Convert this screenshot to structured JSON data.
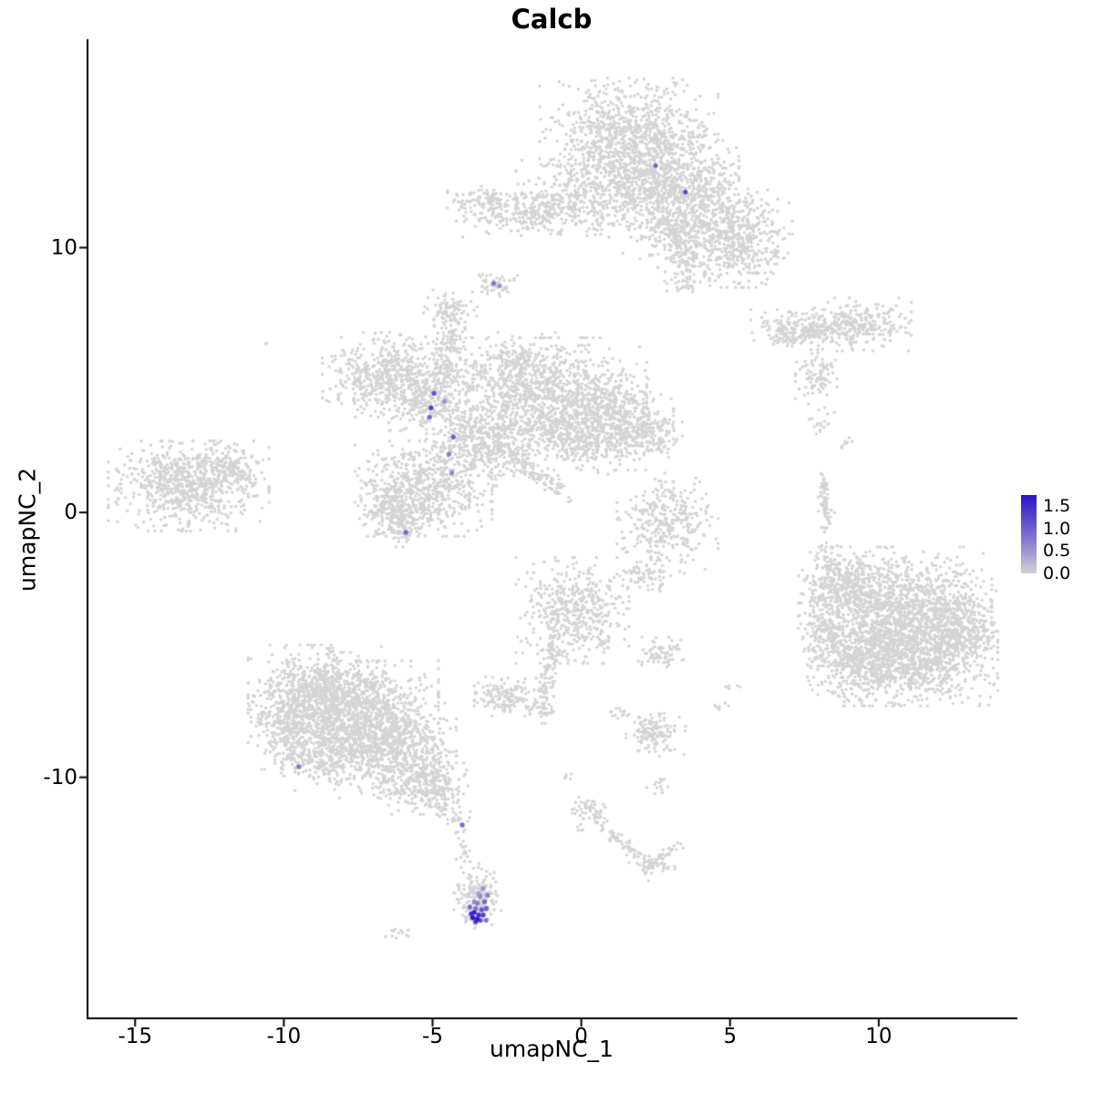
{
  "chart_data": {
    "type": "scatter",
    "title": "Calcb",
    "xlabel": "umapNC_1",
    "ylabel": "umapNC_2",
    "xlim": [
      -16.6,
      14.6
    ],
    "ylim": [
      -19.1,
      17.8
    ],
    "x_ticks": [
      -15,
      -10,
      -5,
      0,
      5,
      10
    ],
    "x_tick_labels": [
      "-15",
      "-10",
      "-5",
      "0",
      "5",
      "10"
    ],
    "y_ticks": [
      10,
      0,
      -10
    ],
    "y_tick_labels": [
      "10",
      "0",
      "-10"
    ],
    "grid": false,
    "legend_position": "right",
    "background_point_color": "#d4d4d4",
    "colorbar": {
      "low_color": "#d3d3d3",
      "high_color": "#2c12cc",
      "vmax": 1.75,
      "tick_labels": [
        "1.5",
        "1.0",
        "0.5",
        "0.0"
      ],
      "tick_values": [
        1.5,
        1.0,
        0.5,
        0.0
      ]
    },
    "background_clusters": [
      {
        "cx": 1.6,
        "cy": 14.2,
        "rx": 1.5,
        "ry": 1.1,
        "n": 900
      },
      {
        "cx": 2.7,
        "cy": 12.4,
        "rx": 1.3,
        "ry": 1.0,
        "n": 700
      },
      {
        "cx": 4.0,
        "cy": 11.0,
        "rx": 1.3,
        "ry": 1.0,
        "n": 600
      },
      {
        "cx": 5.3,
        "cy": 10.1,
        "rx": 0.9,
        "ry": 0.8,
        "n": 300
      },
      {
        "cx": 0.2,
        "cy": 12.1,
        "rx": 1.2,
        "ry": 0.8,
        "n": 260
      },
      {
        "cx": -1.7,
        "cy": 11.4,
        "rx": 1.4,
        "ry": 0.5,
        "n": 300
      },
      {
        "cx": -3.2,
        "cy": 11.7,
        "rx": 0.5,
        "ry": 0.35,
        "n": 80
      },
      {
        "type": "streak",
        "x1": 3.0,
        "y1": 10.9,
        "x2": 3.6,
        "y2": 9.3,
        "w": 0.25,
        "n": 110
      },
      {
        "cx": 3.4,
        "cy": 8.7,
        "rx": 0.3,
        "ry": 0.25,
        "n": 40
      },
      {
        "cx": -2.9,
        "cy": 8.6,
        "rx": 0.38,
        "ry": 0.22,
        "n": 50
      },
      {
        "cx": 7.6,
        "cy": 6.9,
        "rx": 0.95,
        "ry": 0.38,
        "n": 210
      },
      {
        "cx": 9.4,
        "cy": 7.1,
        "rx": 0.85,
        "ry": 0.5,
        "n": 240
      },
      {
        "type": "streak",
        "x1": 6.5,
        "y1": 6.5,
        "x2": 8.5,
        "y2": 6.9,
        "w": 0.18,
        "n": 60
      },
      {
        "cx": 7.9,
        "cy": 5.2,
        "rx": 0.35,
        "ry": 0.55,
        "n": 90
      },
      {
        "cx": 8.1,
        "cy": 3.4,
        "rx": 0.22,
        "ry": 0.3,
        "n": 18
      },
      {
        "cx": 8.9,
        "cy": 2.6,
        "rx": 0.15,
        "ry": 0.15,
        "n": 8
      },
      {
        "cx": -6.6,
        "cy": 5.2,
        "rx": 1.05,
        "ry": 0.8,
        "n": 480
      },
      {
        "cx": -5.2,
        "cy": 4.4,
        "rx": 0.85,
        "ry": 0.7,
        "n": 360
      },
      {
        "type": "streak",
        "x1": -4.6,
        "y1": 5.0,
        "x2": -4.3,
        "y2": 7.4,
        "w": 0.3,
        "n": 150
      },
      {
        "cx": -4.4,
        "cy": 7.7,
        "rx": 0.45,
        "ry": 0.35,
        "n": 80
      },
      {
        "cx": -1.2,
        "cy": 4.3,
        "rx": 1.7,
        "ry": 1.15,
        "n": 1150
      },
      {
        "cx": 0.9,
        "cy": 3.4,
        "rx": 1.1,
        "ry": 0.9,
        "n": 520
      },
      {
        "cx": 2.2,
        "cy": 3.0,
        "rx": 0.6,
        "ry": 0.5,
        "n": 150
      },
      {
        "cx": -2.3,
        "cy": 5.8,
        "rx": 0.8,
        "ry": 0.5,
        "n": 150
      },
      {
        "cx": -3.3,
        "cy": 2.6,
        "rx": 0.95,
        "ry": 0.8,
        "n": 420
      },
      {
        "cx": -5.3,
        "cy": 0.9,
        "rx": 1.15,
        "ry": 0.9,
        "n": 560
      },
      {
        "cx": -6.3,
        "cy": 0.2,
        "rx": 0.6,
        "ry": 0.5,
        "n": 200
      },
      {
        "cx": -5.9,
        "cy": -0.6,
        "rx": 0.38,
        "ry": 0.35,
        "n": 70
      },
      {
        "type": "streak",
        "x1": -2.9,
        "y1": 2.7,
        "x2": -0.6,
        "y2": 0.7,
        "w": 0.22,
        "n": 140
      },
      {
        "type": "streak",
        "x1": -1.3,
        "y1": 3.3,
        "x2": 0.4,
        "y2": 2.1,
        "w": 0.35,
        "n": 150
      },
      {
        "cx": -13.2,
        "cy": 1.0,
        "rx": 1.35,
        "ry": 0.85,
        "n": 760
      },
      {
        "cx": -11.8,
        "cy": 1.7,
        "rx": 0.55,
        "ry": 0.4,
        "n": 120
      },
      {
        "cx": 2.9,
        "cy": -0.4,
        "rx": 0.85,
        "ry": 0.95,
        "n": 330
      },
      {
        "type": "streak",
        "x1": 8.1,
        "y1": 1.3,
        "x2": 8.3,
        "y2": -0.6,
        "w": 0.13,
        "n": 70
      },
      {
        "cx": 8.3,
        "cy": -1.9,
        "rx": 0.2,
        "ry": 0.38,
        "n": 40
      },
      {
        "cx": 10.8,
        "cy": -3.6,
        "rx": 1.5,
        "ry": 1.15,
        "n": 1150
      },
      {
        "cx": 11.4,
        "cy": -5.4,
        "rx": 1.3,
        "ry": 0.95,
        "n": 850
      },
      {
        "cx": 9.5,
        "cy": -5.7,
        "rx": 0.95,
        "ry": 0.8,
        "n": 480
      },
      {
        "cx": 8.9,
        "cy": -2.9,
        "rx": 0.8,
        "ry": 0.7,
        "n": 360
      },
      {
        "cx": 8.2,
        "cy": -4.5,
        "rx": 0.45,
        "ry": 0.65,
        "n": 160
      },
      {
        "cx": 12.8,
        "cy": -4.3,
        "rx": 0.6,
        "ry": 0.85,
        "n": 260
      },
      {
        "cx": -0.3,
        "cy": -3.7,
        "rx": 0.95,
        "ry": 1.0,
        "n": 470
      },
      {
        "type": "streak",
        "x1": -0.9,
        "y1": -4.9,
        "x2": -1.3,
        "y2": -7.0,
        "w": 0.2,
        "n": 90
      },
      {
        "cx": -1.3,
        "cy": -7.4,
        "rx": 0.3,
        "ry": 0.28,
        "n": 40
      },
      {
        "cx": -2.6,
        "cy": -7.0,
        "rx": 0.5,
        "ry": 0.4,
        "n": 130
      },
      {
        "cx": 2.6,
        "cy": -5.3,
        "rx": 0.42,
        "ry": 0.3,
        "n": 70
      },
      {
        "cx": 2.5,
        "cy": -8.3,
        "rx": 0.5,
        "ry": 0.45,
        "n": 130
      },
      {
        "cx": 1.3,
        "cy": -7.5,
        "rx": 0.2,
        "ry": 0.18,
        "n": 14
      },
      {
        "cx": 4.7,
        "cy": -7.4,
        "rx": 0.16,
        "ry": 0.15,
        "n": 8
      },
      {
        "cx": 5.1,
        "cy": -6.6,
        "rx": 0.12,
        "ry": 0.12,
        "n": 5
      },
      {
        "cx": -8.9,
        "cy": -6.9,
        "rx": 1.15,
        "ry": 0.95,
        "n": 750
      },
      {
        "cx": -7.3,
        "cy": -7.6,
        "rx": 1.25,
        "ry": 1.0,
        "n": 850
      },
      {
        "cx": -6.2,
        "cy": -9.0,
        "rx": 1.0,
        "ry": 0.9,
        "n": 600
      },
      {
        "cx": -8.6,
        "cy": -9.1,
        "rx": 0.85,
        "ry": 0.7,
        "n": 360
      },
      {
        "cx": -5.2,
        "cy": -10.2,
        "rx": 0.7,
        "ry": 0.6,
        "n": 250
      },
      {
        "cx": -9.9,
        "cy": -8.0,
        "rx": 0.6,
        "ry": 0.85,
        "n": 260
      },
      {
        "type": "streak",
        "x1": -4.8,
        "y1": -10.8,
        "x2": -4.2,
        "y2": -11.6,
        "w": 0.28,
        "n": 40
      },
      {
        "type": "streak",
        "x1": -4.2,
        "y1": -11.4,
        "x2": -3.7,
        "y2": -13.6,
        "w": 0.17,
        "n": 30
      },
      {
        "cx": -3.45,
        "cy": -14.4,
        "rx": 0.42,
        "ry": 0.5,
        "n": 150
      },
      {
        "cx": -3.55,
        "cy": -15.1,
        "rx": 0.3,
        "ry": 0.35,
        "n": 80
      },
      {
        "cx": -6.1,
        "cy": -15.9,
        "rx": 0.28,
        "ry": 0.15,
        "n": 12
      },
      {
        "cx": 0.3,
        "cy": -11.3,
        "rx": 0.35,
        "ry": 0.35,
        "n": 60
      },
      {
        "type": "streak",
        "x1": 0.5,
        "y1": -11.6,
        "x2": 2.2,
        "y2": -13.2,
        "w": 0.15,
        "n": 60
      },
      {
        "cx": 2.4,
        "cy": -13.4,
        "rx": 0.4,
        "ry": 0.25,
        "n": 50
      },
      {
        "type": "streak",
        "x1": 2.4,
        "y1": -13.2,
        "x2": 3.3,
        "y2": -12.6,
        "w": 0.12,
        "n": 25
      },
      {
        "cx": 2.6,
        "cy": -10.3,
        "rx": 0.2,
        "ry": 0.2,
        "n": 14
      },
      {
        "cx": -0.4,
        "cy": -9.9,
        "rx": 0.15,
        "ry": 0.12,
        "n": 5
      },
      {
        "cx": 2.1,
        "cy": -2.4,
        "rx": 0.45,
        "ry": 0.3,
        "n": 70
      },
      {
        "cx": -10.6,
        "cy": 6.3,
        "rx": 0.05,
        "ry": 0.05,
        "n": 2
      },
      {
        "cx": 0.8,
        "cy": -4.9,
        "rx": 0.2,
        "ry": 0.18,
        "n": 12
      }
    ],
    "expressing_points": [
      {
        "x": 2.5,
        "y": 13.1,
        "v": 0.9
      },
      {
        "x": 3.5,
        "y": 12.1,
        "v": 1.2
      },
      {
        "x": -2.95,
        "y": 8.65,
        "v": 0.8
      },
      {
        "x": -2.75,
        "y": 8.55,
        "v": 0.5
      },
      {
        "x": -4.95,
        "y": 4.5,
        "v": 1.1
      },
      {
        "x": -4.6,
        "y": 4.2,
        "v": 0.5
      },
      {
        "x": -5.05,
        "y": 3.95,
        "v": 1.3
      },
      {
        "x": -5.1,
        "y": 3.6,
        "v": 0.9
      },
      {
        "x": -4.3,
        "y": 2.85,
        "v": 1.0
      },
      {
        "x": -4.45,
        "y": 2.2,
        "v": 0.7
      },
      {
        "x": -4.35,
        "y": 1.5,
        "v": 0.6
      },
      {
        "x": -5.9,
        "y": -0.75,
        "v": 0.9
      },
      {
        "x": -9.5,
        "y": -9.6,
        "v": 0.8
      },
      {
        "x": -4.0,
        "y": -11.8,
        "v": 0.9
      },
      {
        "x": -3.3,
        "y": -14.2,
        "v": 0.5
      },
      {
        "x": -3.15,
        "y": -14.45,
        "v": 0.7
      },
      {
        "x": -3.4,
        "y": -14.5,
        "v": 0.6
      },
      {
        "x": -3.25,
        "y": -14.7,
        "v": 0.9
      },
      {
        "x": -3.5,
        "y": -14.75,
        "v": 0.7
      },
      {
        "x": -3.6,
        "y": -14.7,
        "v": 0.6
      },
      {
        "x": -3.75,
        "y": -14.9,
        "v": 0.9
      },
      {
        "x": -3.2,
        "y": -14.95,
        "v": 1.0
      },
      {
        "x": -3.35,
        "y": -15.0,
        "v": 1.1
      },
      {
        "x": -3.55,
        "y": -14.95,
        "v": 0.8
      },
      {
        "x": -3.3,
        "y": -15.2,
        "v": 1.3
      },
      {
        "x": -3.45,
        "y": -15.2,
        "v": 1.5
      },
      {
        "x": -3.6,
        "y": -15.1,
        "v": 1.6
      },
      {
        "x": -3.7,
        "y": -15.15,
        "v": 1.5
      },
      {
        "x": -3.65,
        "y": -15.3,
        "v": 1.75
      },
      {
        "x": -3.5,
        "y": -15.35,
        "v": 1.7
      },
      {
        "x": -3.55,
        "y": -15.45,
        "v": 1.4
      },
      {
        "x": -3.4,
        "y": -15.4,
        "v": 1.2
      },
      {
        "x": -3.2,
        "y": -15.4,
        "v": 0.8
      },
      {
        "x": -3.45,
        "y": -14.4,
        "v": 0.4
      }
    ]
  }
}
